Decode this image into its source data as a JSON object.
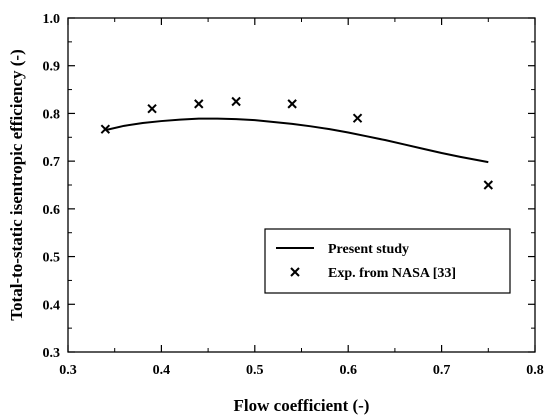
{
  "chart_data": {
    "type": "line",
    "xlabel": "Flow coefficient (-)",
    "ylabel": "Total-to-static isentropic efficiency (-)",
    "xlim": [
      0.3,
      0.8
    ],
    "ylim": [
      0.3,
      1.0
    ],
    "x_ticks": [
      "0.3",
      "0.4",
      "0.5",
      "0.6",
      "0.7",
      "0.8"
    ],
    "y_ticks": [
      "0.3",
      "0.4",
      "0.5",
      "0.6",
      "0.7",
      "0.8",
      "0.9",
      "1.0"
    ],
    "grid": false,
    "legend_position": "bottom-right",
    "series": [
      {
        "name": "Present study",
        "style": "line",
        "color": "#000000",
        "x": [
          0.34,
          0.36,
          0.38,
          0.4,
          0.42,
          0.44,
          0.46,
          0.48,
          0.5,
          0.52,
          0.54,
          0.56,
          0.58,
          0.6,
          0.62,
          0.64,
          0.66,
          0.68,
          0.7,
          0.72,
          0.75
        ],
        "y": [
          0.765,
          0.774,
          0.78,
          0.784,
          0.787,
          0.789,
          0.789,
          0.788,
          0.786,
          0.782,
          0.778,
          0.773,
          0.767,
          0.76,
          0.752,
          0.744,
          0.735,
          0.726,
          0.717,
          0.709,
          0.698
        ]
      },
      {
        "name": "Exp. from NASA [33]",
        "style": "marker",
        "marker": "x",
        "color": "#000000",
        "x": [
          0.34,
          0.39,
          0.44,
          0.48,
          0.54,
          0.61,
          0.75
        ],
        "y": [
          0.767,
          0.81,
          0.82,
          0.825,
          0.82,
          0.79,
          0.65
        ]
      }
    ]
  }
}
